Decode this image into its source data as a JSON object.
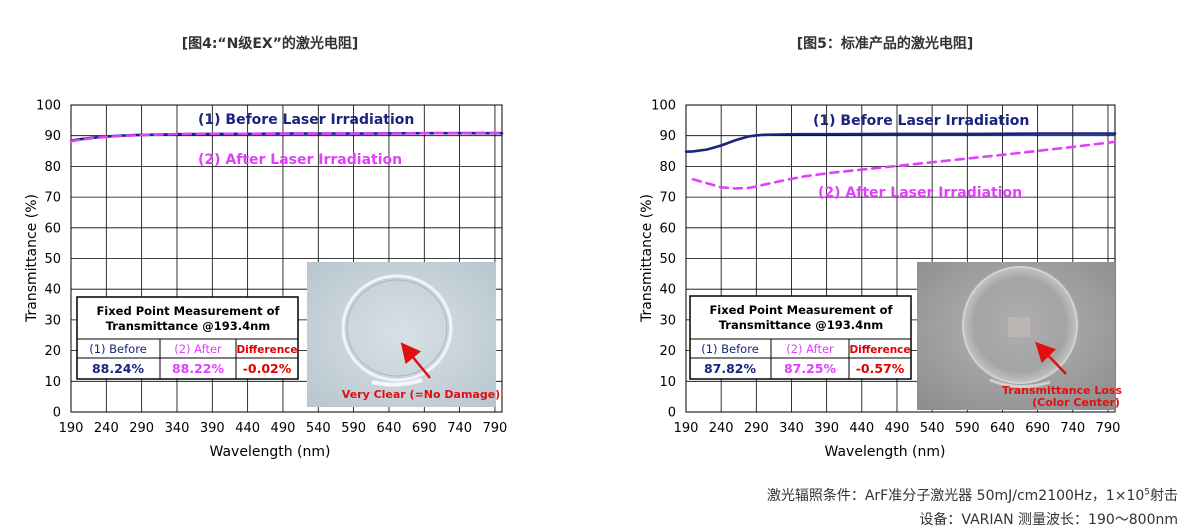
{
  "chart_data": [
    {
      "type": "line",
      "title": "[图4:“N级EX”的激光电阻]",
      "xlabel": "Wavelength (nm)",
      "ylabel": "Transmittance (%)",
      "xlim": [
        190,
        800
      ],
      "ylim": [
        0,
        100
      ],
      "x_ticks": [
        "190",
        "240",
        "290",
        "340",
        "390",
        "440",
        "490",
        "540",
        "590",
        "640",
        "690",
        "740",
        "790"
      ],
      "y_ticks": [
        "0",
        "10",
        "20",
        "30",
        "40",
        "50",
        "60",
        "70",
        "80",
        "90",
        "100"
      ],
      "grid": true,
      "series": [
        {
          "name": "(1) Before Laser Irradiation",
          "color": "#1a237e",
          "style": "solid",
          "x": [
            190,
            200,
            220,
            240,
            260,
            280,
            300,
            340,
            400,
            500,
            600,
            700,
            800
          ],
          "y": [
            88.4,
            88.8,
            89.3,
            89.7,
            90.0,
            90.2,
            90.3,
            90.5,
            90.6,
            90.7,
            90.7,
            90.8,
            90.8
          ]
        },
        {
          "name": "(2) After Laser Irradiation",
          "color": "#e040fb",
          "style": "dashed",
          "x": [
            190,
            200,
            220,
            240,
            260,
            280,
            300,
            340,
            400,
            500,
            600,
            700,
            800
          ],
          "y": [
            88.2,
            88.6,
            89.2,
            89.6,
            89.9,
            90.1,
            90.3,
            90.5,
            90.6,
            90.7,
            90.7,
            90.8,
            90.9
          ]
        }
      ],
      "measurement_table": {
        "title_line1": "Fixed Point Measurement of",
        "title_line2": "Transmittance @193.4nm",
        "headers": [
          "(1) Before",
          "(2) After",
          "Difference"
        ],
        "values": [
          "88.24%",
          "88.22%",
          "-0.02%"
        ]
      },
      "photo": {
        "tone": "light",
        "annotation": "Very Clear (=No Damage)"
      }
    },
    {
      "type": "line",
      "title": "[图5：标准产品的激光电阻]",
      "xlabel": "Wavelength (nm)",
      "ylabel": "Transmittance (%)",
      "xlim": [
        190,
        800
      ],
      "ylim": [
        0,
        100
      ],
      "x_ticks": [
        "190",
        "240",
        "290",
        "340",
        "390",
        "440",
        "490",
        "540",
        "590",
        "640",
        "690",
        "740",
        "790"
      ],
      "y_ticks": [
        "0",
        "10",
        "20",
        "30",
        "40",
        "50",
        "60",
        "70",
        "80",
        "90",
        "100"
      ],
      "grid": true,
      "series": [
        {
          "name": "(1) Before Laser Irradiation",
          "color": "#1a237e",
          "style": "solid",
          "x": [
            190,
            200,
            220,
            240,
            260,
            280,
            290,
            300,
            320,
            350,
            400,
            500,
            600,
            700,
            800
          ],
          "y": [
            84.8,
            84.9,
            85.5,
            86.8,
            88.5,
            89.8,
            90.1,
            90.3,
            90.4,
            90.5,
            90.5,
            90.6,
            90.6,
            90.7,
            90.7
          ]
        },
        {
          "name": "(2) After Laser Irradiation",
          "color": "#e040fb",
          "style": "dashed",
          "x": [
            200,
            220,
            240,
            260,
            280,
            300,
            330,
            360,
            400,
            450,
            500,
            550,
            600,
            650,
            700,
            750,
            800
          ],
          "y": [
            75.8,
            74.5,
            73.2,
            72.8,
            73.0,
            74.0,
            75.5,
            76.8,
            78.0,
            79.2,
            80.4,
            81.6,
            82.8,
            84.0,
            85.3,
            86.6,
            88.0
          ]
        }
      ],
      "measurement_table": {
        "title_line1": "Fixed Point Measurement of",
        "title_line2": "Transmittance @193.4nm",
        "headers": [
          "(1) Before",
          "(2) After",
          "Difference"
        ],
        "values": [
          "87.82%",
          "87.25%",
          "-0.57%"
        ]
      },
      "photo": {
        "tone": "dark",
        "annotation_line1": "Transmittance Loss",
        "annotation_line2": "(Color Center)"
      }
    }
  ],
  "footnote": {
    "line1_prefix": "激光辐照条件：ArF准分子激光器  50mJ/cm2100Hz，1×10",
    "line1_sup": "5",
    "line1_suffix": "射击",
    "line2": "设备：VARIAN  测量波长：190〜800nm"
  },
  "colors": {
    "before": "#1a237e",
    "after": "#e040fb",
    "difference": "#e00000",
    "arrow": "#e01010",
    "grid": "#000000"
  }
}
